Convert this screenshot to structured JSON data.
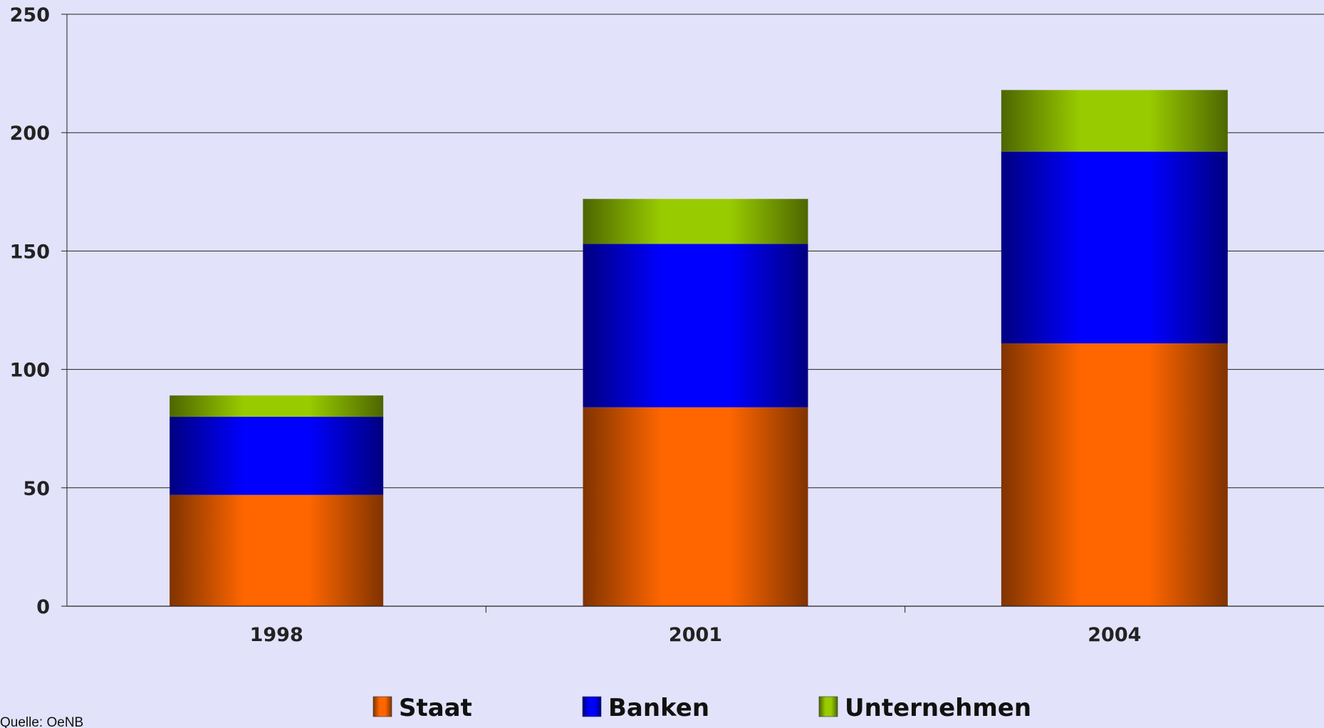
{
  "chart_data": {
    "type": "bar",
    "stacked": true,
    "categories": [
      "1998",
      "2001",
      "2004"
    ],
    "series": [
      {
        "name": "Staat",
        "values": [
          47,
          84,
          111
        ],
        "color": "#ff6600"
      },
      {
        "name": "Banken",
        "values": [
          33,
          69,
          81
        ],
        "color": "#0000ff"
      },
      {
        "name": "Unternehmen",
        "values": [
          9,
          19,
          26
        ],
        "color": "#99cc00"
      }
    ],
    "ylim": [
      0,
      250
    ],
    "yticks": [
      "0",
      "50",
      "100",
      "150",
      "200",
      "250"
    ],
    "grid": true,
    "legend": "bottom",
    "background": "#e2e2fa",
    "source": "Quelle: OeNB"
  }
}
